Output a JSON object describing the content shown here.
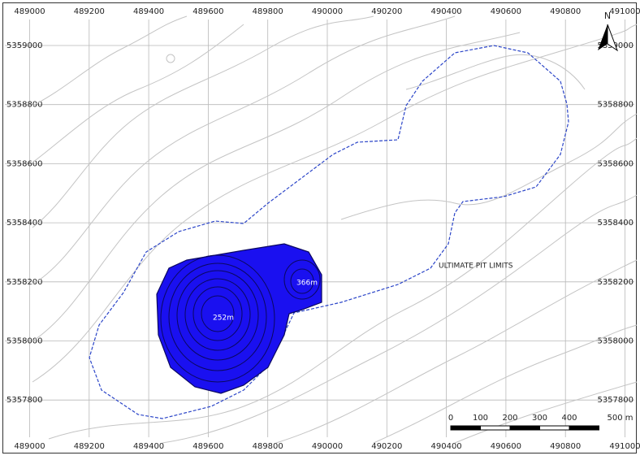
{
  "grid": {
    "x_labels": [
      "489000",
      "489200",
      "489400",
      "489600",
      "489800",
      "490000",
      "490200",
      "490400",
      "490600",
      "490800",
      "491000"
    ],
    "y_labels": [
      "5359000",
      "5358800",
      "5358600",
      "5358400",
      "5358200",
      "5358000",
      "5357800"
    ]
  },
  "annotations": {
    "pit_limits": "ULTIMATE PIT LIMITS",
    "depth_main": "252m",
    "depth_secondary": "366m"
  },
  "north": "N",
  "scale_bar": {
    "labels": [
      "0",
      "100",
      "200",
      "300",
      "400",
      "500 m"
    ]
  }
}
